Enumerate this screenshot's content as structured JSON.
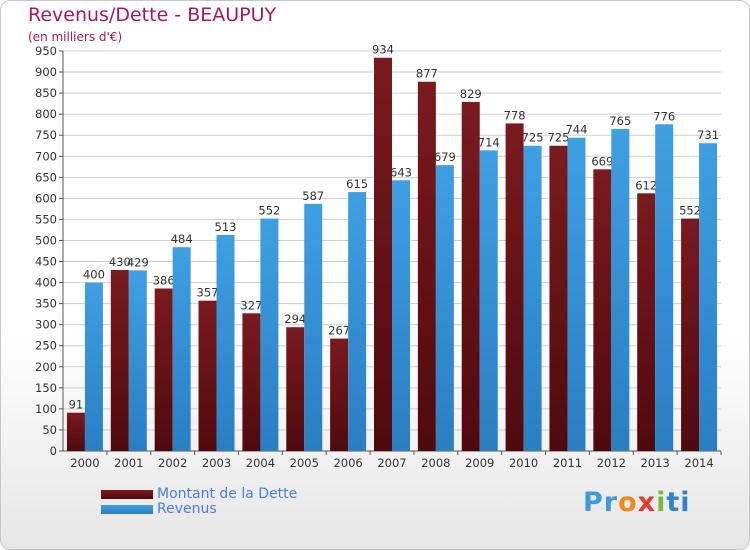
{
  "title": "Revenus/Dette - BEAUPUY",
  "subtitle": "(en milliers d'€)",
  "colors": {
    "dette": "#7a1a1e",
    "revenus": "#3f9fe3",
    "grid": "#cfcfcf",
    "title": "#a8185e",
    "legend_text": "#4a7de0"
  },
  "logo": {
    "parts": [
      "Pr",
      "o",
      "x",
      "i",
      "ti"
    ]
  },
  "chart_data": {
    "type": "bar",
    "title": "Revenus/Dette - BEAUPUY",
    "subtitle": "(en milliers d'€)",
    "categories": [
      "2000",
      "2001",
      "2002",
      "2003",
      "2004",
      "2005",
      "2006",
      "2007",
      "2008",
      "2009",
      "2010",
      "2011",
      "2012",
      "2013",
      "2014"
    ],
    "series": [
      {
        "name": "Montant de la Dette",
        "values": [
          91,
          430,
          386,
          357,
          327,
          294,
          267,
          934,
          877,
          829,
          778,
          725,
          669,
          612,
          552
        ]
      },
      {
        "name": "Revenus",
        "values": [
          400,
          429,
          484,
          513,
          552,
          587,
          615,
          643,
          679,
          714,
          725,
          744,
          765,
          776,
          731
        ]
      }
    ],
    "ylim": [
      0,
      950
    ],
    "yticks": [
      0,
      50,
      100,
      150,
      200,
      250,
      300,
      350,
      400,
      450,
      500,
      550,
      600,
      650,
      700,
      750,
      800,
      850,
      900,
      950
    ],
    "grid": true,
    "legend_position": "bottom-left"
  }
}
